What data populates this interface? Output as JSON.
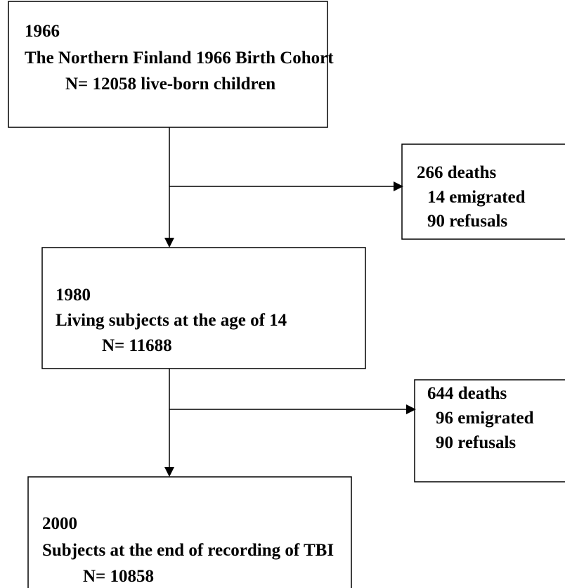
{
  "nodes": [
    {
      "lines": [
        "1966",
        "The Northern Finland 1966 Birth Cohort",
        "N= 12058 live-born children"
      ]
    },
    {
      "lines": [
        "266 deaths",
        "14 emigrated",
        "90 refusals"
      ]
    },
    {
      "lines": [
        "1980",
        "Living subjects at the age of 14",
        "N= 11688"
      ]
    },
    {
      "lines": [
        "644 deaths",
        "96 emigrated",
        "90 refusals"
      ]
    },
    {
      "lines": [
        "2000",
        "Subjects at the end of recording of TBI",
        "N= 10858"
      ]
    }
  ]
}
